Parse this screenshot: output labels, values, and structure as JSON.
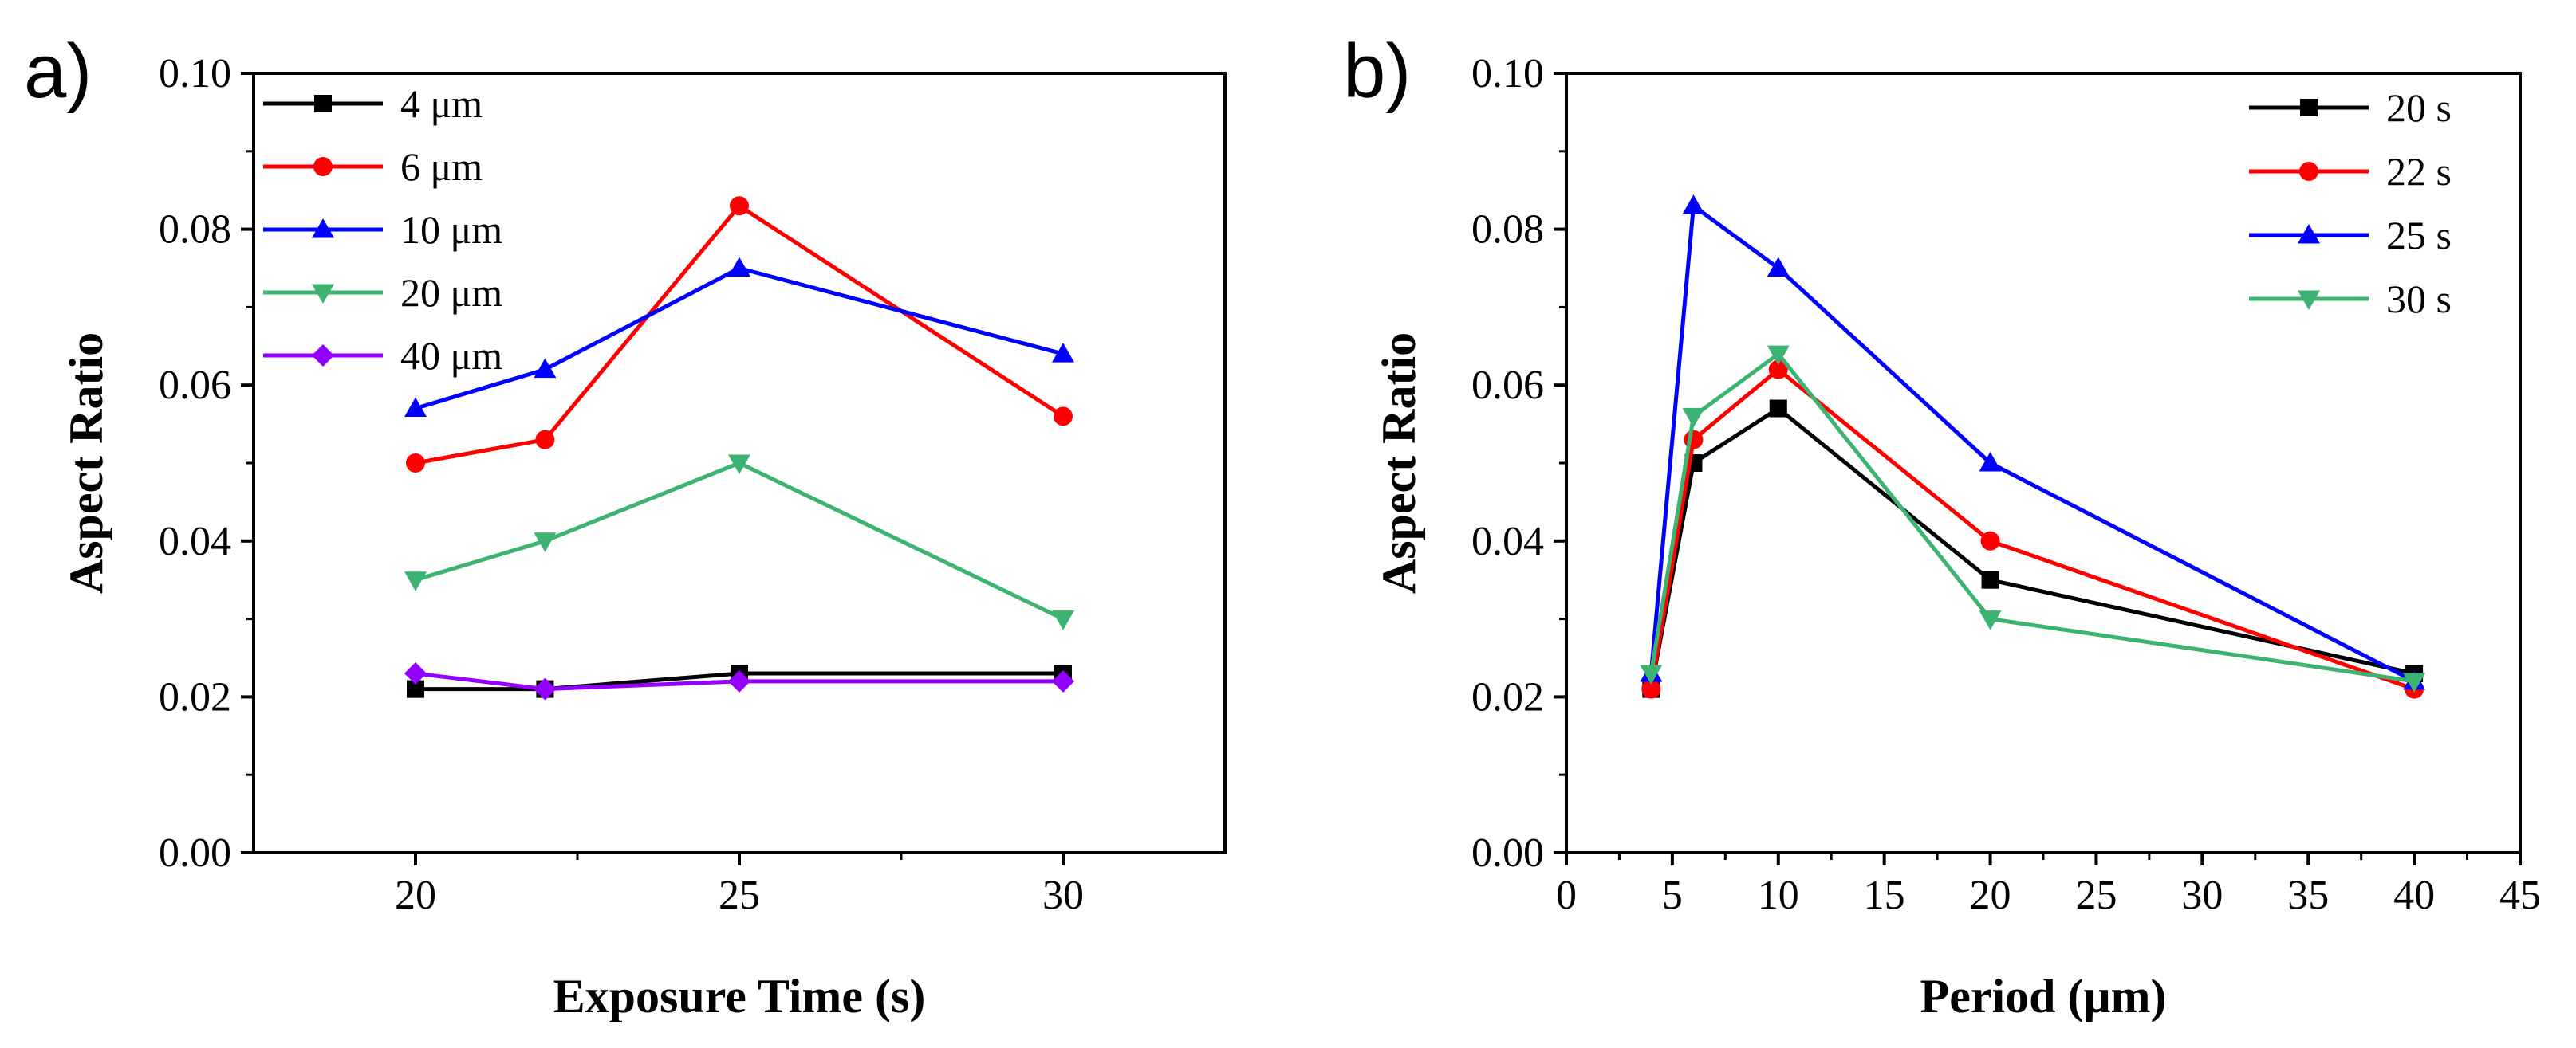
{
  "chart_data": [
    {
      "panel_label": "a)",
      "type": "line",
      "xlabel": "Exposure Time (s)",
      "ylabel": "Aspect Ratio",
      "xlim": [
        17.5,
        32.5
      ],
      "ylim": [
        0.0,
        0.1
      ],
      "xticks": [
        20,
        25,
        30
      ],
      "xtick_labels": [
        "20",
        "25",
        "30"
      ],
      "yticks": [
        0.0,
        0.02,
        0.04,
        0.06,
        0.08,
        0.1
      ],
      "ytick_labels": [
        "0.00",
        "0.02",
        "0.04",
        "0.06",
        "0.08",
        "0.10"
      ],
      "legend_position": "top-left",
      "x": [
        20,
        22,
        25,
        30
      ],
      "series": [
        {
          "name": "4 μm",
          "color": "#000000",
          "marker": "square",
          "values": [
            0.021,
            0.021,
            0.023,
            0.023
          ]
        },
        {
          "name": "6 μm",
          "color": "#ff0000",
          "marker": "circle",
          "values": [
            0.05,
            0.053,
            0.083,
            0.056
          ]
        },
        {
          "name": "10 μm",
          "color": "#0000ff",
          "marker": "triangle-up",
          "values": [
            0.057,
            0.062,
            0.075,
            0.064
          ]
        },
        {
          "name": "20 μm",
          "color": "#3cb371",
          "marker": "triangle-down",
          "values": [
            0.035,
            0.04,
            0.05,
            0.03
          ]
        },
        {
          "name": "40 μm",
          "color": "#9400ff",
          "marker": "diamond",
          "values": [
            0.023,
            0.021,
            0.022,
            0.022
          ]
        }
      ]
    },
    {
      "panel_label": "b)",
      "type": "line",
      "xlabel": "Period (μm)",
      "ylabel": "Aspect Ratio",
      "xlim": [
        0,
        45
      ],
      "ylim": [
        0.0,
        0.1
      ],
      "xticks": [
        0,
        5,
        10,
        15,
        20,
        25,
        30,
        35,
        40,
        45
      ],
      "xtick_labels": [
        "0",
        "5",
        "10",
        "15",
        "20",
        "25",
        "30",
        "35",
        "40",
        "45"
      ],
      "yticks": [
        0.0,
        0.02,
        0.04,
        0.06,
        0.08,
        0.1
      ],
      "ytick_labels": [
        "0.00",
        "0.02",
        "0.04",
        "0.06",
        "0.08",
        "0.10"
      ],
      "legend_position": "top-right",
      "x": [
        4,
        6,
        10,
        20,
        40
      ],
      "series": [
        {
          "name": "20 s",
          "color": "#000000",
          "marker": "square",
          "values": [
            0.021,
            0.05,
            0.057,
            0.035,
            0.023
          ]
        },
        {
          "name": "22 s",
          "color": "#ff0000",
          "marker": "circle",
          "values": [
            0.021,
            0.053,
            0.062,
            0.04,
            0.021
          ]
        },
        {
          "name": "25 s",
          "color": "#0000ff",
          "marker": "triangle-up",
          "values": [
            0.023,
            0.083,
            0.075,
            0.05,
            0.022
          ]
        },
        {
          "name": "30 s",
          "color": "#3cb371",
          "marker": "triangle-down",
          "values": [
            0.023,
            0.056,
            0.064,
            0.03,
            0.022
          ]
        }
      ]
    }
  ]
}
